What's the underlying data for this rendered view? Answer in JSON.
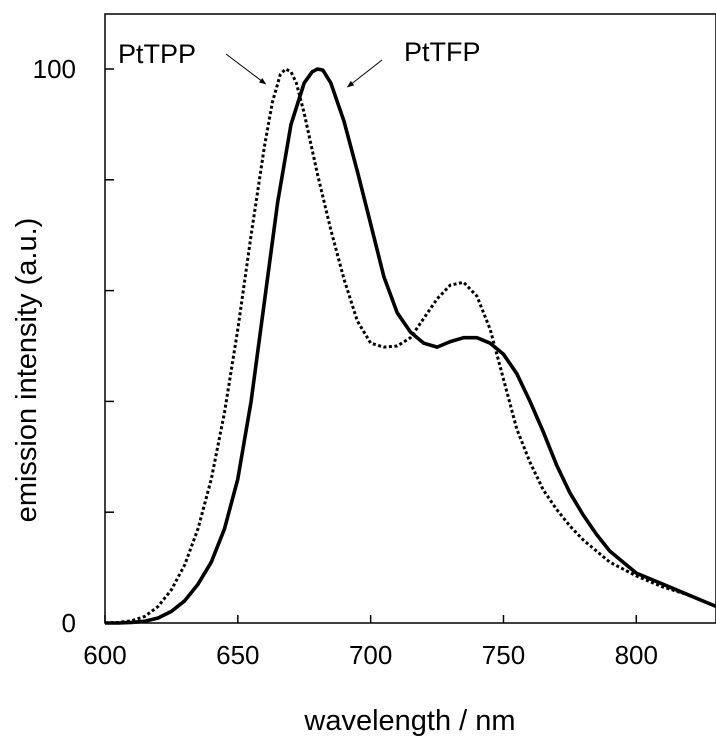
{
  "chart_data": {
    "type": "line",
    "title": "",
    "xlabel": "wavelength / nm",
    "ylabel": "emission intensity (a.u.)",
    "xlim": [
      600,
      830
    ],
    "ylim": [
      0,
      110
    ],
    "x_ticks": [
      600,
      650,
      700,
      750,
      800
    ],
    "y_ticks": [
      0,
      20,
      40,
      60,
      80,
      100
    ],
    "y_tick_labels": [
      "0",
      "",
      "",
      "",
      "",
      "100"
    ],
    "grid": false,
    "series": [
      {
        "name": "PtTPP",
        "line_style": "dotted",
        "x": [
          600,
          605,
          610,
          615,
          620,
          625,
          630,
          635,
          640,
          645,
          650,
          655,
          660,
          663,
          666,
          668,
          670,
          672,
          675,
          680,
          685,
          690,
          695,
          700,
          705,
          710,
          715,
          720,
          725,
          730,
          735,
          740,
          745,
          750,
          755,
          760,
          765,
          770,
          775,
          780,
          790,
          800,
          810,
          820,
          830
        ],
        "y": [
          0,
          0.1,
          0.4,
          1.2,
          3,
          6,
          10.5,
          17,
          26,
          38,
          53,
          70,
          86,
          94,
          99,
          100,
          99.5,
          97.5,
          92,
          81,
          71,
          62,
          54.5,
          50.5,
          49.8,
          50,
          51.5,
          55,
          58.5,
          61,
          61.5,
          59,
          53,
          44,
          35,
          29,
          24,
          20.5,
          17.5,
          15,
          11,
          8.5,
          6.5,
          5,
          3
        ]
      },
      {
        "name": "PtTFP",
        "line_style": "solid",
        "x": [
          600,
          605,
          610,
          615,
          620,
          625,
          630,
          635,
          640,
          645,
          650,
          655,
          660,
          665,
          670,
          675,
          678,
          680,
          682,
          685,
          690,
          695,
          700,
          705,
          710,
          715,
          720,
          725,
          730,
          735,
          740,
          745,
          750,
          755,
          760,
          765,
          770,
          775,
          780,
          785,
          790,
          800,
          810,
          820,
          830
        ],
        "y": [
          0,
          0,
          0.1,
          0.3,
          0.9,
          2.1,
          4,
          7,
          11,
          17,
          26,
          40,
          58,
          76,
          90,
          97.5,
          99.5,
          100,
          99.8,
          97.5,
          90.5,
          81.5,
          72,
          62.5,
          56,
          52.5,
          50.5,
          49.8,
          50.8,
          51.5,
          51.5,
          50.5,
          48.5,
          45,
          40,
          34.5,
          28.5,
          23.5,
          19.5,
          16,
          13,
          9,
          7,
          5,
          3
        ]
      }
    ],
    "annotations": [
      {
        "text": "PtTPP",
        "series": "PtTPP",
        "x": 668,
        "y": 100
      },
      {
        "text": "PtTFP",
        "series": "PtTFP",
        "x": 680,
        "y": 100
      }
    ]
  }
}
